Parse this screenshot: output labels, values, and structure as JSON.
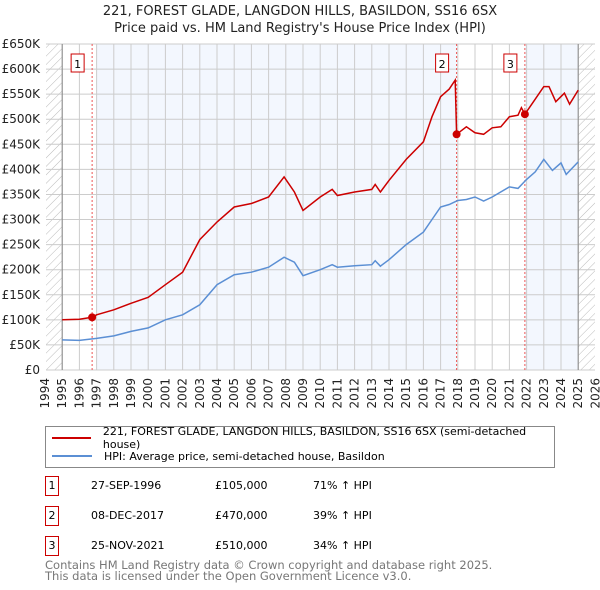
{
  "chart_data": {
    "type": "line",
    "title": "221, FOREST GLADE, LANGDON HILLS, BASILDON, SS16 6SX",
    "subtitle": "Price paid vs. HM Land Registry's House Price Index (HPI)",
    "xlim": [
      1994,
      2026
    ],
    "ylim": [
      0,
      650000
    ],
    "x_ticks": [
      "1994",
      "1995",
      "1996",
      "1997",
      "1998",
      "1999",
      "2000",
      "2001",
      "2002",
      "2003",
      "2004",
      "2005",
      "2006",
      "2007",
      "2008",
      "2009",
      "2010",
      "2011",
      "2012",
      "2013",
      "2014",
      "2015",
      "2016",
      "2017",
      "2018",
      "2019",
      "2020",
      "2021",
      "2022",
      "2023",
      "2024",
      "2025",
      "2026"
    ],
    "y_ticks": [
      {
        "v": 0,
        "label": "£0"
      },
      {
        "v": 50000,
        "label": "£50K"
      },
      {
        "v": 100000,
        "label": "£100K"
      },
      {
        "v": 150000,
        "label": "£150K"
      },
      {
        "v": 200000,
        "label": "£200K"
      },
      {
        "v": 250000,
        "label": "£250K"
      },
      {
        "v": 300000,
        "label": "£300K"
      },
      {
        "v": 350000,
        "label": "£350K"
      },
      {
        "v": 400000,
        "label": "£400K"
      },
      {
        "v": 450000,
        "label": "£450K"
      },
      {
        "v": 500000,
        "label": "£500K"
      },
      {
        "v": 550000,
        "label": "£550K"
      },
      {
        "v": 600000,
        "label": "£600K"
      },
      {
        "v": 650000,
        "label": "£650K"
      }
    ],
    "grid": true,
    "series": [
      {
        "name": "221, FOREST GLADE, LANGDON HILLS, BASILDON, SS16 6SX (semi-detached house)",
        "color": "#cc0000",
        "x": [
          1995,
          1996,
          1996.74,
          1997,
          1998,
          1999,
          2000,
          2001,
          2002,
          2003,
          2004,
          2005,
          2006,
          2007,
          2007.9,
          2008.5,
          2009,
          2010,
          2010.7,
          2011,
          2012,
          2013,
          2013.2,
          2013.5,
          2014,
          2015,
          2016,
          2016.5,
          2017,
          2017.5,
          2017.85,
          2017.93,
          2018.5,
          2019,
          2019.5,
          2020,
          2020.5,
          2021,
          2021.5,
          2021.7,
          2021.9,
          2022.5,
          2023,
          2023.3,
          2023.7,
          2024.2,
          2024.5,
          2025
        ],
        "y": [
          100000,
          101000,
          105000,
          110000,
          120000,
          133000,
          145000,
          170000,
          195000,
          260000,
          295000,
          325000,
          332000,
          345000,
          385000,
          355000,
          318000,
          345000,
          360000,
          348000,
          355000,
          360000,
          370000,
          355000,
          378000,
          420000,
          455000,
          505000,
          545000,
          560000,
          578000,
          470000,
          485000,
          473000,
          470000,
          483000,
          485000,
          505000,
          508000,
          523000,
          510000,
          540000,
          565000,
          565000,
          535000,
          552000,
          530000,
          558000
        ]
      },
      {
        "name": "HPI: Average price, semi-detached house, Basildon",
        "color": "#5b8fd4",
        "x": [
          1995,
          1996,
          1997,
          1998,
          1999,
          2000,
          2001,
          2002,
          2003,
          2004,
          2005,
          2006,
          2007,
          2007.9,
          2008.5,
          2009,
          2010,
          2010.7,
          2011,
          2012,
          2013,
          2013.2,
          2013.5,
          2014,
          2015,
          2016,
          2016.5,
          2017,
          2017.5,
          2018,
          2018.5,
          2019,
          2019.5,
          2020,
          2021,
          2021.5,
          2022,
          2022.5,
          2023,
          2023.5,
          2024,
          2024.3,
          2025
        ],
        "y": [
          60000,
          59000,
          63000,
          68000,
          77000,
          84000,
          100000,
          110000,
          130000,
          170000,
          190000,
          195000,
          205000,
          225000,
          215000,
          188000,
          200000,
          210000,
          205000,
          208000,
          210000,
          218000,
          207000,
          220000,
          250000,
          275000,
          300000,
          325000,
          330000,
          338000,
          340000,
          345000,
          337000,
          345000,
          365000,
          362000,
          380000,
          395000,
          420000,
          398000,
          413000,
          390000,
          415000
        ]
      }
    ],
    "sales": [
      {
        "n": "1",
        "x": 1996.74,
        "y": 105000,
        "date": "27-SEP-1996",
        "price": "£105,000",
        "hpi": "71% ↑ HPI"
      },
      {
        "n": "2",
        "x": 2017.93,
        "y": 470000,
        "date": "08-DEC-2017",
        "price": "£470,000",
        "hpi": "39% ↑ HPI"
      },
      {
        "n": "3",
        "x": 2021.9,
        "y": 510000,
        "date": "25-NOV-2021",
        "price": "£510,000",
        "hpi": "34% ↑ HPI"
      }
    ],
    "legend_position": "below"
  },
  "footer": {
    "line1": "Contains HM Land Registry data © Crown copyright and database right 2025.",
    "line2": "This data is licensed under the Open Government Licence v3.0."
  }
}
